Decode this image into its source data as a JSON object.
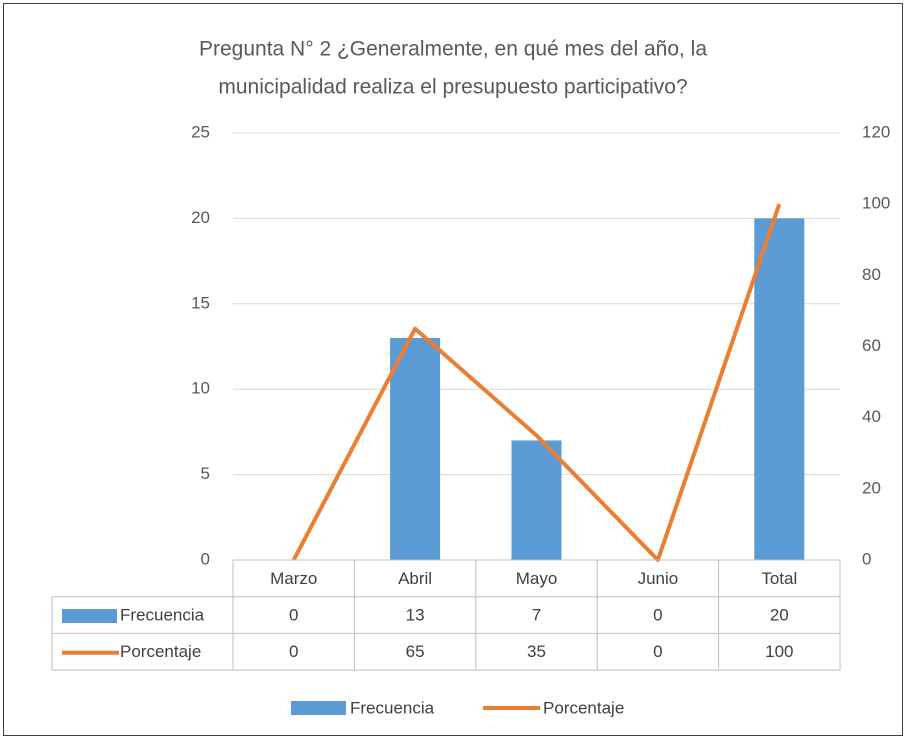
{
  "chart_data": {
    "type": "bar-line",
    "title": [
      "Pregunta N° 2 ¿Generalmente, en qué mes del año, la",
      "municipalidad realiza el presupuesto participativo?"
    ],
    "categories": [
      "Marzo",
      "Abril",
      "Mayo",
      "Junio",
      "Total"
    ],
    "series": [
      {
        "name": "Frecuencia",
        "type": "bar",
        "color": "#5b9bd5",
        "values": [
          0,
          13,
          7,
          0,
          20
        ]
      },
      {
        "name": "Porcentaje",
        "type": "line",
        "axis": "y2",
        "color": "#ed7d31",
        "values": [
          0,
          65,
          35,
          0,
          100
        ]
      }
    ],
    "ylim": [
      0,
      25
    ],
    "yticks": [
      0,
      5,
      10,
      15,
      20,
      25
    ],
    "y2lim": [
      0,
      120
    ],
    "y2ticks": [
      0,
      20,
      40,
      60,
      80,
      100,
      120
    ],
    "grid": true,
    "legend": "bottom",
    "data_table": true
  }
}
